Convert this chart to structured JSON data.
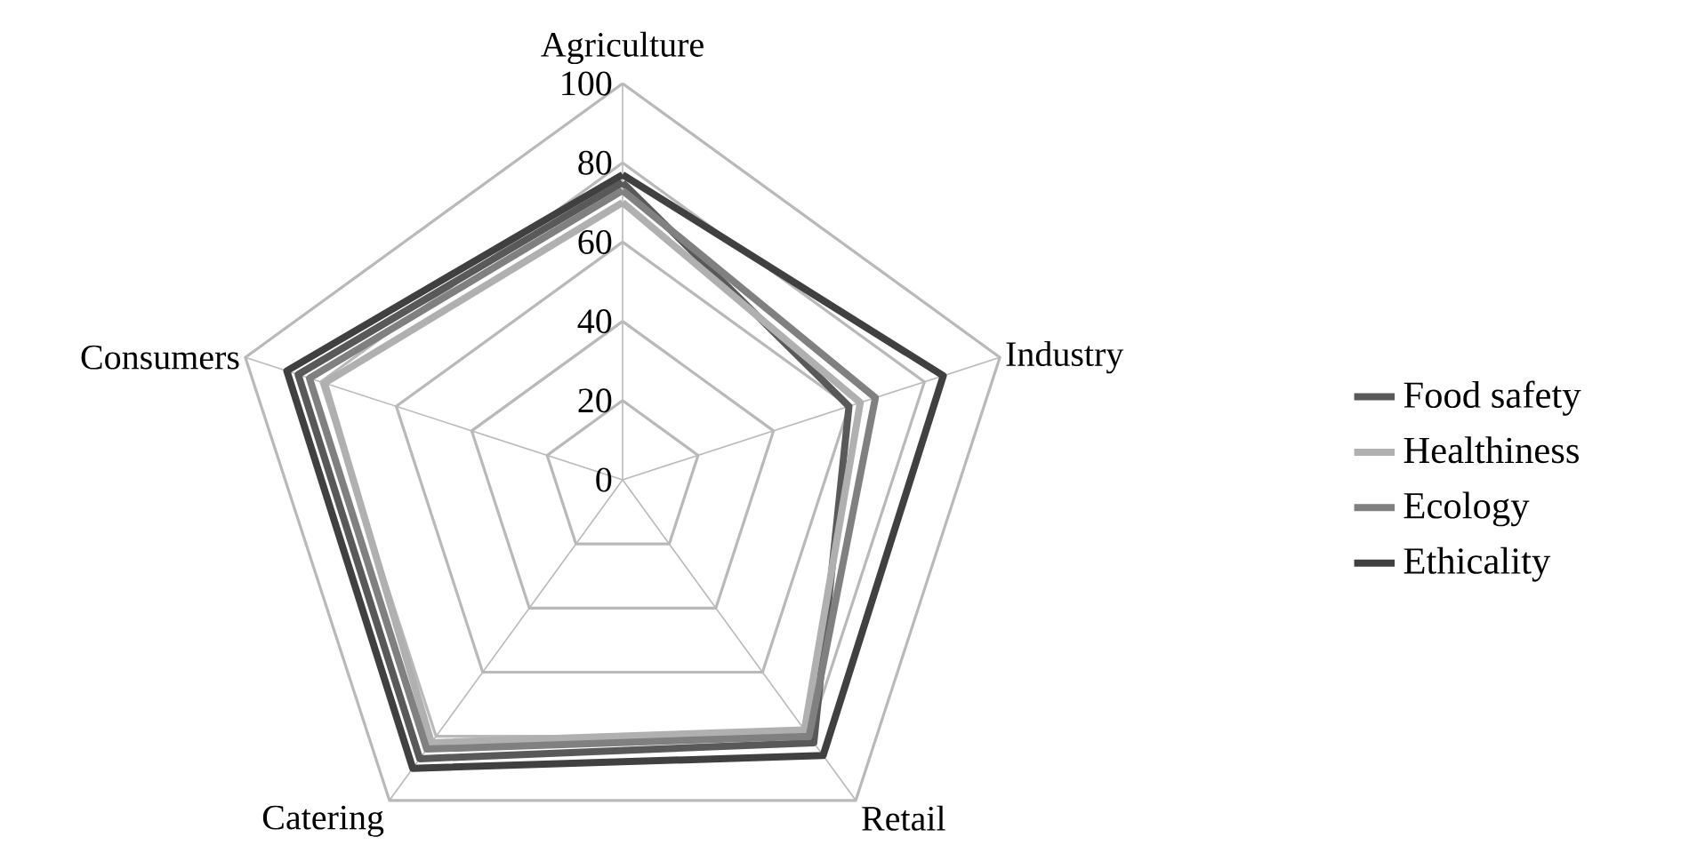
{
  "chart_data": {
    "type": "radar",
    "categories": [
      "Agriculture",
      "Industry",
      "Retail",
      "Catering",
      "Consumers"
    ],
    "ylim": [
      0,
      100
    ],
    "yticks": [
      0,
      20,
      40,
      60,
      80,
      100
    ],
    "grid": true,
    "legend": "right",
    "series": [
      {
        "name": "Food safety",
        "color": "#595959",
        "values": [
          75,
          60,
          82,
          87,
          86
        ]
      },
      {
        "name": "Healthiness",
        "color": "#b0b0b0",
        "values": [
          70,
          63,
          78,
          82,
          79
        ]
      },
      {
        "name": "Ecology",
        "color": "#808080",
        "values": [
          73,
          67,
          80,
          84,
          83
        ]
      },
      {
        "name": "Ethicality",
        "color": "#404040",
        "values": [
          77,
          85,
          86,
          90,
          89
        ]
      }
    ]
  }
}
